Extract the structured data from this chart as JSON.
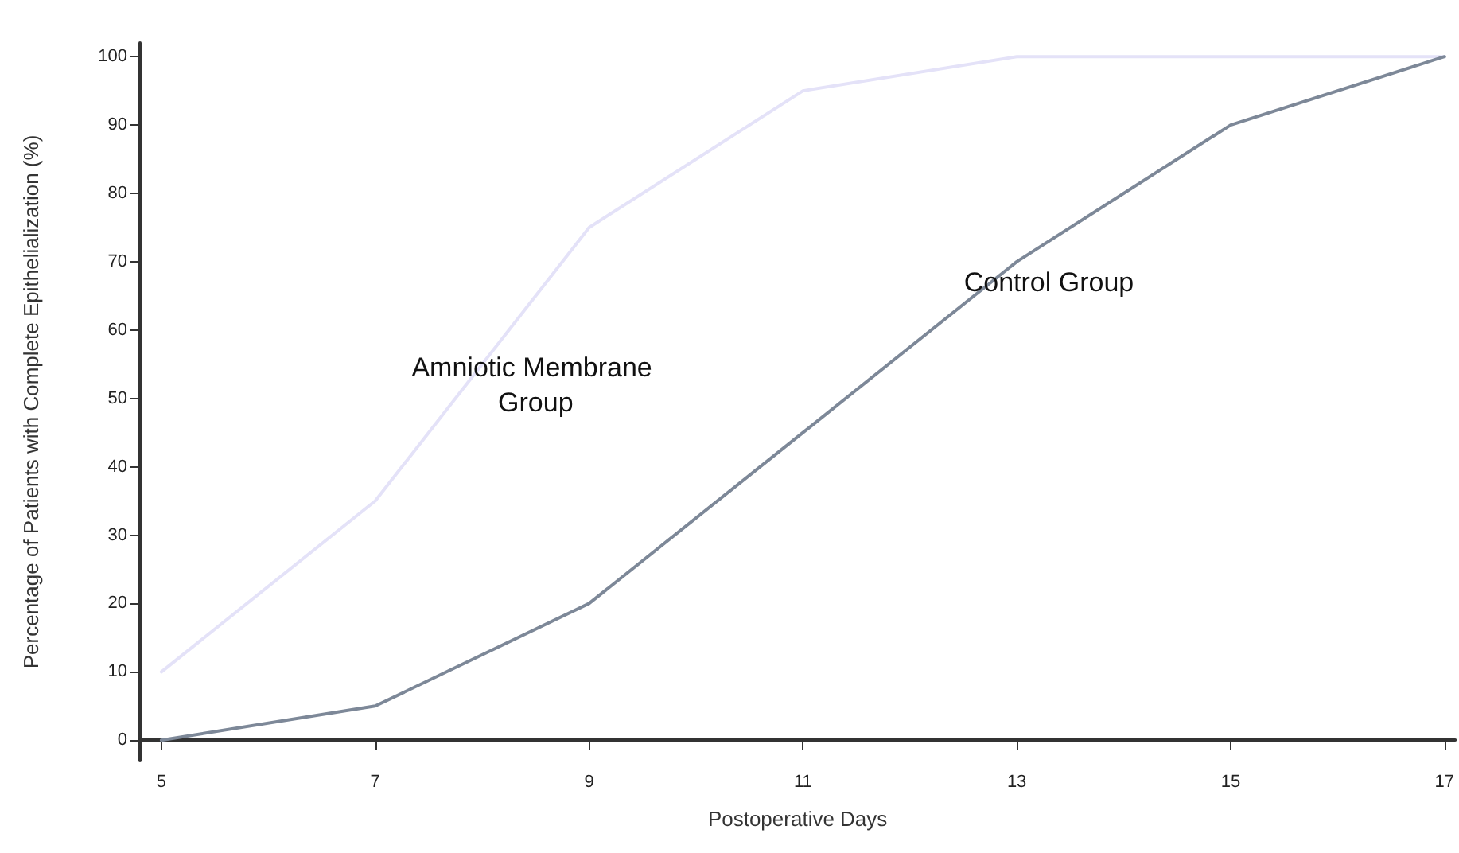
{
  "chart_data": {
    "type": "line",
    "xlabel": "Postoperative Days",
    "ylabel": "Percentage of Patients with Complete Epithelialization (%)",
    "x": [
      5,
      7,
      9,
      11,
      13,
      15,
      17
    ],
    "series": [
      {
        "name": "Amniotic Membrane Group",
        "color": "#e4e2f8",
        "values": [
          10,
          35,
          75,
          95,
          100,
          100,
          100
        ]
      },
      {
        "name": "Control Group",
        "color": "#7d8898",
        "values": [
          0,
          5,
          20,
          45,
          70,
          90,
          100
        ]
      }
    ],
    "xlim": [
      4.8,
      17.1
    ],
    "xticks": [
      5,
      7,
      9,
      11,
      13,
      15,
      17
    ],
    "ylim": [
      -3,
      102
    ],
    "yticks": [
      0,
      10,
      20,
      30,
      40,
      50,
      60,
      70,
      80,
      90,
      100
    ],
    "grid": false,
    "legend": false,
    "marker": "none",
    "line_style": "solid"
  }
}
